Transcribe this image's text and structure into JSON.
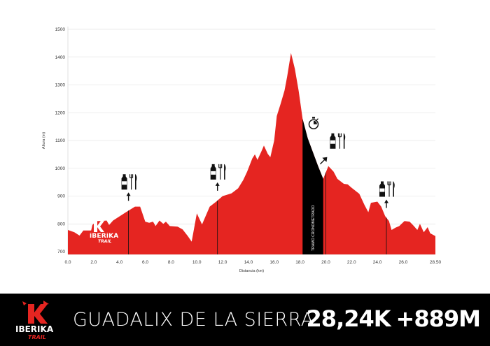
{
  "brand": {
    "name": "IBERIKA",
    "sub": "TRAIL"
  },
  "race": {
    "name": "GUADALIX DE LA SIERRA",
    "distance": "28,24K",
    "elevation_gain": "+889M"
  },
  "colors": {
    "profile": "#e52521",
    "timed": "#000000",
    "footer": "#000000",
    "grid": "#dddddd"
  },
  "chart_data": {
    "type": "area",
    "xlabel": "Distancia (km)",
    "ylabel": "Altura (m)",
    "xlim": [
      0,
      28.5
    ],
    "ylim": [
      690,
      1510
    ],
    "x_ticks": [
      {
        "value": 0,
        "label": "0.0"
      },
      {
        "value": 2,
        "label": "2.0"
      },
      {
        "value": 4,
        "label": "4.0"
      },
      {
        "value": 6,
        "label": "6.0"
      },
      {
        "value": 8,
        "label": "8.0"
      },
      {
        "value": 10,
        "label": "10.0"
      },
      {
        "value": 12,
        "label": "12.0"
      },
      {
        "value": 14,
        "label": "14.0"
      },
      {
        "value": 16,
        "label": "16.0"
      },
      {
        "value": 18,
        "label": "18.0"
      },
      {
        "value": 20,
        "label": "20.0"
      },
      {
        "value": 22,
        "label": "22.0"
      },
      {
        "value": 24,
        "label": "24.0"
      },
      {
        "value": 26,
        "label": "26.0"
      },
      {
        "value": 28.5,
        "label": "28.50"
      }
    ],
    "y_ticks": [
      {
        "value": 700,
        "label": "700"
      },
      {
        "value": 800,
        "label": "800"
      },
      {
        "value": 900,
        "label": "900"
      },
      {
        "value": 1000,
        "label": "1000"
      },
      {
        "value": 1100,
        "label": "1100"
      },
      {
        "value": 1200,
        "label": "1200"
      },
      {
        "value": 1300,
        "label": "1300"
      },
      {
        "value": 1400,
        "label": "1400"
      },
      {
        "value": 1500,
        "label": "1500"
      }
    ],
    "y_tick_pixel_label_note": "",
    "profile": [
      {
        "x": 0.0,
        "y": 778
      },
      {
        "x": 0.5,
        "y": 770
      },
      {
        "x": 0.9,
        "y": 758
      },
      {
        "x": 1.2,
        "y": 776
      },
      {
        "x": 1.8,
        "y": 776
      },
      {
        "x": 1.9,
        "y": 796
      },
      {
        "x": 2.2,
        "y": 810
      },
      {
        "x": 2.6,
        "y": 810
      },
      {
        "x": 3.0,
        "y": 812
      },
      {
        "x": 3.2,
        "y": 796
      },
      {
        "x": 3.5,
        "y": 812
      },
      {
        "x": 4.5,
        "y": 842
      },
      {
        "x": 5.2,
        "y": 862
      },
      {
        "x": 5.6,
        "y": 862
      },
      {
        "x": 6.0,
        "y": 808
      },
      {
        "x": 6.3,
        "y": 804
      },
      {
        "x": 6.6,
        "y": 808
      },
      {
        "x": 6.8,
        "y": 792
      },
      {
        "x": 7.1,
        "y": 812
      },
      {
        "x": 7.4,
        "y": 800
      },
      {
        "x": 7.6,
        "y": 808
      },
      {
        "x": 7.9,
        "y": 792
      },
      {
        "x": 8.5,
        "y": 790
      },
      {
        "x": 8.9,
        "y": 780
      },
      {
        "x": 9.3,
        "y": 756
      },
      {
        "x": 9.6,
        "y": 736
      },
      {
        "x": 10.0,
        "y": 838
      },
      {
        "x": 10.4,
        "y": 798
      },
      {
        "x": 11.0,
        "y": 862
      },
      {
        "x": 11.5,
        "y": 880
      },
      {
        "x": 12.0,
        "y": 900
      },
      {
        "x": 12.3,
        "y": 904
      },
      {
        "x": 12.7,
        "y": 910
      },
      {
        "x": 13.2,
        "y": 928
      },
      {
        "x": 13.6,
        "y": 958
      },
      {
        "x": 13.9,
        "y": 988
      },
      {
        "x": 14.3,
        "y": 1035
      },
      {
        "x": 14.5,
        "y": 1050
      },
      {
        "x": 14.7,
        "y": 1030
      },
      {
        "x": 15.0,
        "y": 1060
      },
      {
        "x": 15.2,
        "y": 1082
      },
      {
        "x": 15.5,
        "y": 1052
      },
      {
        "x": 15.7,
        "y": 1040
      },
      {
        "x": 16.0,
        "y": 1100
      },
      {
        "x": 16.2,
        "y": 1188
      },
      {
        "x": 16.5,
        "y": 1232
      },
      {
        "x": 16.8,
        "y": 1280
      },
      {
        "x": 17.0,
        "y": 1330
      },
      {
        "x": 17.3,
        "y": 1415
      },
      {
        "x": 17.6,
        "y": 1358
      },
      {
        "x": 17.9,
        "y": 1278
      },
      {
        "x": 18.2,
        "y": 1178
      },
      {
        "x": 18.6,
        "y": 1108
      },
      {
        "x": 19.0,
        "y": 1058
      },
      {
        "x": 19.4,
        "y": 1008
      },
      {
        "x": 19.8,
        "y": 962
      },
      {
        "x": 20.2,
        "y": 1008
      },
      {
        "x": 20.6,
        "y": 988
      },
      {
        "x": 20.9,
        "y": 962
      },
      {
        "x": 21.4,
        "y": 944
      },
      {
        "x": 21.7,
        "y": 942
      },
      {
        "x": 22.0,
        "y": 930
      },
      {
        "x": 22.6,
        "y": 908
      },
      {
        "x": 23.0,
        "y": 868
      },
      {
        "x": 23.3,
        "y": 842
      },
      {
        "x": 23.5,
        "y": 876
      },
      {
        "x": 24.0,
        "y": 880
      },
      {
        "x": 24.3,
        "y": 862
      },
      {
        "x": 24.6,
        "y": 828
      },
      {
        "x": 24.9,
        "y": 810
      },
      {
        "x": 25.1,
        "y": 778
      },
      {
        "x": 25.4,
        "y": 786
      },
      {
        "x": 25.7,
        "y": 792
      },
      {
        "x": 26.1,
        "y": 810
      },
      {
        "x": 26.5,
        "y": 808
      },
      {
        "x": 26.8,
        "y": 794
      },
      {
        "x": 27.1,
        "y": 778
      },
      {
        "x": 27.3,
        "y": 800
      },
      {
        "x": 27.6,
        "y": 770
      },
      {
        "x": 27.9,
        "y": 788
      },
      {
        "x": 28.1,
        "y": 766
      },
      {
        "x": 28.5,
        "y": 756
      }
    ],
    "timed_section": {
      "label": "TRAMO CRONOMETRADO",
      "x_start": 18.2,
      "x_end": 19.8
    },
    "aid_stations": [
      {
        "km": 4.7,
        "services": [
          "water",
          "food"
        ],
        "arrow": "up"
      },
      {
        "km": 11.6,
        "services": [
          "water",
          "food"
        ],
        "arrow": "up"
      },
      {
        "km": 20.0,
        "services": [
          "water",
          "food"
        ],
        "arrow": "up-right"
      },
      {
        "km": 24.7,
        "services": [
          "water",
          "food"
        ],
        "arrow": "up"
      }
    ],
    "stopwatch": {
      "km": 19.0,
      "icon": "stopwatch-icon"
    }
  }
}
